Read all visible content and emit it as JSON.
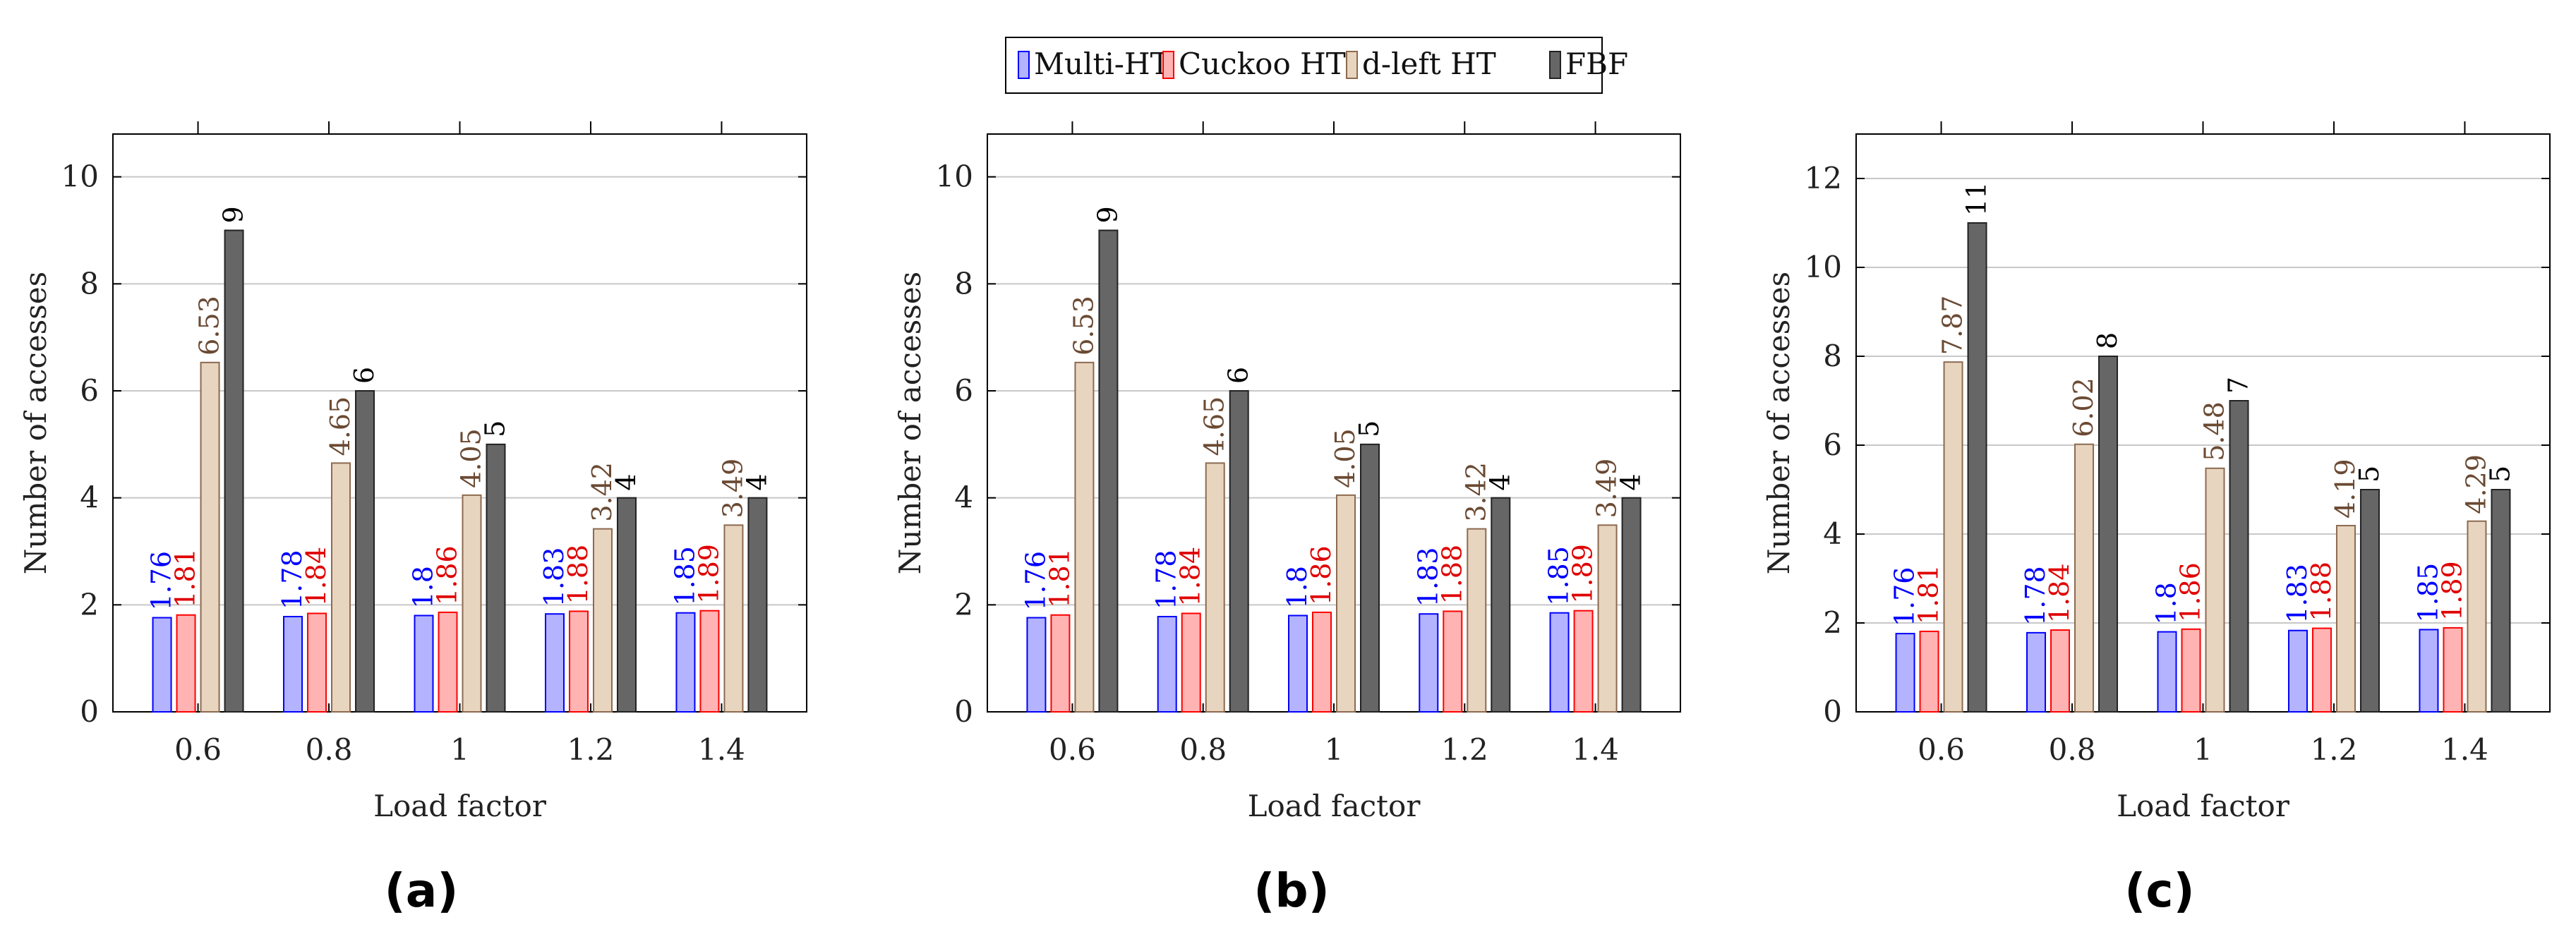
{
  "figure": {
    "legend": [
      {
        "label": "Multi-HT",
        "color": "#b3b3ff",
        "stroke": "#0000ff"
      },
      {
        "label": "Cuckoo HT",
        "color": "#ffb3b3",
        "stroke": "#ff0000"
      },
      {
        "label": "d-left HT",
        "color": "#e8d5c0",
        "stroke": "#8c6a4f"
      },
      {
        "label": "FBF",
        "color": "#666666",
        "stroke": "#222222"
      }
    ]
  },
  "chart_data": [
    {
      "type": "bar",
      "caption": "(a)",
      "xlabel": "Load factor",
      "ylabel": "Number of accesses",
      "categories": [
        "0.6",
        "0.8",
        "1",
        "1.2",
        "1.4"
      ],
      "ylim": [
        0,
        10.8
      ],
      "yticks": [
        0,
        2,
        4,
        6,
        8,
        10
      ],
      "grid": true,
      "series": [
        {
          "name": "Multi-HT",
          "values": [
            1.76,
            1.78,
            1.8,
            1.83,
            1.85
          ],
          "labels": [
            "1.76",
            "1.78",
            "1.8",
            "1.83",
            "1.85"
          ]
        },
        {
          "name": "Cuckoo HT",
          "values": [
            1.81,
            1.84,
            1.86,
            1.88,
            1.89
          ],
          "labels": [
            "1.81",
            "1.84",
            "1.86",
            "1.88",
            "1.89"
          ]
        },
        {
          "name": "d-left HT",
          "values": [
            6.53,
            4.65,
            4.05,
            3.42,
            3.49
          ],
          "labels": [
            "6.53",
            "4.65",
            "4.05",
            "3.42",
            "3.49"
          ]
        },
        {
          "name": "FBF",
          "values": [
            9,
            6,
            5,
            4,
            4
          ],
          "labels": [
            "9",
            "6",
            "5",
            "4",
            "4"
          ]
        }
      ]
    },
    {
      "type": "bar",
      "caption": "(b)",
      "xlabel": "Load factor",
      "ylabel": "Number of accesses",
      "categories": [
        "0.6",
        "0.8",
        "1",
        "1.2",
        "1.4"
      ],
      "ylim": [
        0,
        10.8
      ],
      "yticks": [
        0,
        2,
        4,
        6,
        8,
        10
      ],
      "grid": true,
      "series": [
        {
          "name": "Multi-HT",
          "values": [
            1.76,
            1.78,
            1.8,
            1.83,
            1.85
          ],
          "labels": [
            "1.76",
            "1.78",
            "1.8",
            "1.83",
            "1.85"
          ]
        },
        {
          "name": "Cuckoo HT",
          "values": [
            1.81,
            1.84,
            1.86,
            1.88,
            1.89
          ],
          "labels": [
            "1.81",
            "1.84",
            "1.86",
            "1.88",
            "1.89"
          ]
        },
        {
          "name": "d-left HT",
          "values": [
            6.53,
            4.65,
            4.05,
            3.42,
            3.49
          ],
          "labels": [
            "6.53",
            "4.65",
            "4.05",
            "3.42",
            "3.49"
          ]
        },
        {
          "name": "FBF",
          "values": [
            9,
            6,
            5,
            4,
            4
          ],
          "labels": [
            "9",
            "6",
            "5",
            "4",
            "4"
          ]
        }
      ]
    },
    {
      "type": "bar",
      "caption": "(c)",
      "xlabel": "Load factor",
      "ylabel": "Number of accesses",
      "categories": [
        "0.6",
        "0.8",
        "1",
        "1.2",
        "1.4"
      ],
      "ylim": [
        0,
        13
      ],
      "yticks": [
        0,
        2,
        4,
        6,
        8,
        10,
        12
      ],
      "grid": true,
      "series": [
        {
          "name": "Multi-HT",
          "values": [
            1.76,
            1.78,
            1.8,
            1.83,
            1.85
          ],
          "labels": [
            "1.76",
            "1.78",
            "1.8",
            "1.83",
            "1.85"
          ]
        },
        {
          "name": "Cuckoo HT",
          "values": [
            1.81,
            1.84,
            1.86,
            1.88,
            1.89
          ],
          "labels": [
            "1.81",
            "1.84",
            "1.86",
            "1.88",
            "1.89"
          ]
        },
        {
          "name": "d-left HT",
          "values": [
            7.87,
            6.02,
            5.48,
            4.19,
            4.29
          ],
          "labels": [
            "7.87",
            "6.02",
            "5.48",
            "4.19",
            "4.29"
          ]
        },
        {
          "name": "FBF",
          "values": [
            11,
            8,
            7,
            5,
            5
          ],
          "labels": [
            "11",
            "8",
            "7",
            "5",
            "5"
          ]
        }
      ]
    }
  ]
}
